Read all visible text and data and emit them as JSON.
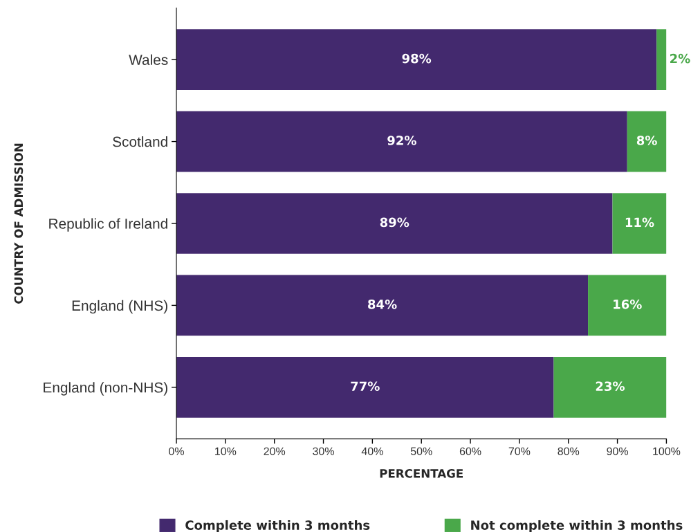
{
  "chart_data": {
    "type": "bar",
    "orientation": "horizontal",
    "stacked": true,
    "ylabel": "COUNTRY OF ADMISSION",
    "xlabel": "PERCENTAGE",
    "categories": [
      "Wales",
      "Scotland",
      "Republic of Ireland",
      "England (NHS)",
      "England (non-NHS)"
    ],
    "series": [
      {
        "name": "Complete within 3 months",
        "color": "#43296e",
        "values": [
          98,
          92,
          89,
          84,
          77
        ],
        "value_labels": [
          "98%",
          "92%",
          "89%",
          "84%",
          "77%"
        ]
      },
      {
        "name": "Not complete within 3 months",
        "color": "#4aa84a",
        "values": [
          2,
          8,
          11,
          16,
          23
        ],
        "value_labels": [
          "2%",
          "8%",
          "11%",
          "16%",
          "23%"
        ]
      }
    ],
    "xlim": [
      0,
      100
    ],
    "xticks": [
      {
        "value": 0,
        "label": "0%"
      },
      {
        "value": 10,
        "label": "10%"
      },
      {
        "value": 20,
        "label": "20%"
      },
      {
        "value": 30,
        "label": "30%"
      },
      {
        "value": 40,
        "label": "40%"
      },
      {
        "value": 50,
        "label": "50%"
      },
      {
        "value": 60,
        "label": "60%"
      },
      {
        "value": 70,
        "label": "70%"
      },
      {
        "value": 80,
        "label": "80%"
      },
      {
        "value": 90,
        "label": "90%"
      },
      {
        "value": 100,
        "label": "100%"
      }
    ],
    "grid": false,
    "legend": "bottom"
  }
}
